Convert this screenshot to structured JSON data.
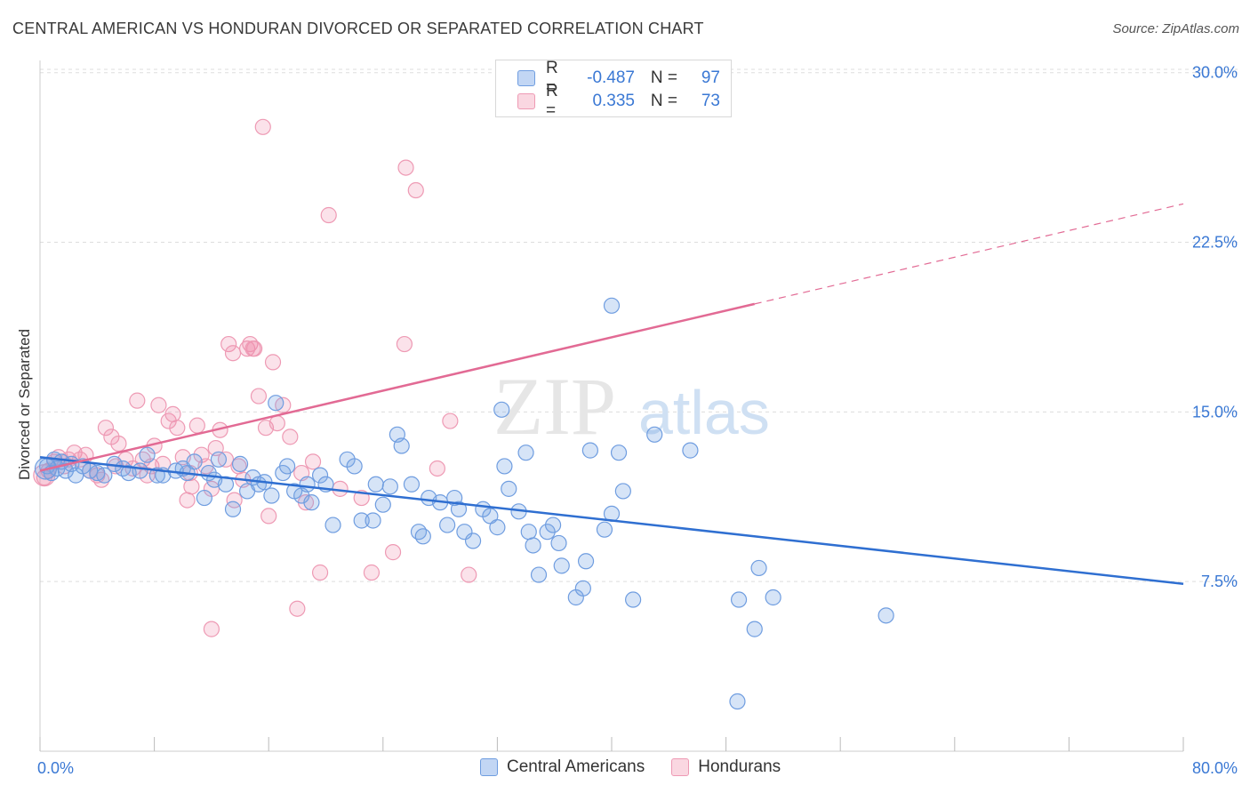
{
  "title": "CENTRAL AMERICAN VS HONDURAN DIVORCED OR SEPARATED CORRELATION CHART",
  "source": "Source: ZipAtlas.com",
  "watermark": {
    "zip": "ZIP",
    "atlas": "atlas"
  },
  "legend_top": [
    {
      "r_label": "R =",
      "r_value": "-0.487",
      "n_label": "N =",
      "n_value": "97"
    },
    {
      "r_label": "R =",
      "r_value": "0.335",
      "n_label": "N =",
      "n_value": "73"
    }
  ],
  "legend_bottom": [
    {
      "label": "Central Americans"
    },
    {
      "label": "Hondurans"
    }
  ],
  "colors": {
    "blue_fill": "rgba(120,165,230,0.30)",
    "blue_stroke": "#6f9de0",
    "blue_line": "#2f6fd1",
    "pink_fill": "rgba(240,140,170,0.25)",
    "pink_stroke": "#ee9ab4",
    "pink_line": "#e26a94",
    "tick_label": "#3a78d4",
    "grid": "#dddddd"
  },
  "chart_data": {
    "type": "scatter",
    "title": "CENTRAL AMERICAN VS HONDURAN DIVORCED OR SEPARATED CORRELATION CHART",
    "xlabel": "",
    "ylabel": "Divorced or Separated",
    "xlim": [
      0,
      80
    ],
    "ylim": [
      0,
      30.5
    ],
    "x_tick_labels": [
      "0.0%",
      "80.0%"
    ],
    "y_ticks": [
      7.5,
      15.0,
      22.5,
      30.0
    ],
    "y_tick_labels": [
      "7.5%",
      "15.0%",
      "22.5%",
      "30.0%"
    ],
    "grid": true,
    "legend_position": "top-center",
    "series": [
      {
        "name": "Central Americans",
        "color": "#6f9de0",
        "trend": {
          "x": [
            0,
            80
          ],
          "y": [
            13.0,
            7.4
          ]
        },
        "points": [
          [
            0.5,
            12.6
          ],
          [
            0.8,
            12.3
          ],
          [
            1.0,
            12.9
          ],
          [
            1.2,
            12.5
          ],
          [
            1.5,
            12.8
          ],
          [
            1.8,
            12.4
          ],
          [
            2.2,
            12.7
          ],
          [
            2.5,
            12.2
          ],
          [
            3.0,
            12.6
          ],
          [
            3.5,
            12.4
          ],
          [
            4.0,
            12.3
          ],
          [
            4.5,
            12.2
          ],
          [
            5.2,
            12.7
          ],
          [
            5.8,
            12.5
          ],
          [
            6.2,
            12.3
          ],
          [
            7.0,
            12.4
          ],
          [
            7.5,
            13.1
          ],
          [
            8.2,
            12.2
          ],
          [
            8.6,
            12.2
          ],
          [
            9.5,
            12.4
          ],
          [
            10.0,
            12.5
          ],
          [
            10.3,
            12.3
          ],
          [
            10.8,
            12.8
          ],
          [
            11.5,
            11.2
          ],
          [
            11.8,
            12.3
          ],
          [
            12.2,
            12.0
          ],
          [
            12.5,
            12.9
          ],
          [
            13.0,
            11.8
          ],
          [
            13.5,
            10.7
          ],
          [
            14.0,
            12.7
          ],
          [
            14.5,
            11.5
          ],
          [
            14.9,
            12.1
          ],
          [
            15.3,
            11.8
          ],
          [
            15.7,
            11.9
          ],
          [
            16.2,
            11.3
          ],
          [
            16.5,
            15.4
          ],
          [
            17.0,
            12.3
          ],
          [
            17.3,
            12.6
          ],
          [
            17.8,
            11.5
          ],
          [
            18.3,
            11.3
          ],
          [
            18.7,
            11.8
          ],
          [
            19.0,
            11.0
          ],
          [
            19.6,
            12.2
          ],
          [
            20.0,
            11.8
          ],
          [
            20.5,
            10.0
          ],
          [
            21.5,
            12.9
          ],
          [
            22.0,
            12.6
          ],
          [
            22.5,
            10.2
          ],
          [
            23.3,
            10.2
          ],
          [
            23.5,
            11.8
          ],
          [
            24.0,
            10.9
          ],
          [
            24.5,
            11.7
          ],
          [
            25.0,
            14.0
          ],
          [
            25.3,
            13.5
          ],
          [
            26.0,
            11.8
          ],
          [
            26.5,
            9.7
          ],
          [
            26.8,
            9.5
          ],
          [
            27.2,
            11.2
          ],
          [
            28.0,
            11.0
          ],
          [
            28.5,
            10.0
          ],
          [
            29.0,
            11.2
          ],
          [
            29.3,
            10.7
          ],
          [
            29.7,
            9.7
          ],
          [
            30.3,
            9.3
          ],
          [
            31.0,
            10.7
          ],
          [
            31.5,
            10.4
          ],
          [
            32.0,
            9.9
          ],
          [
            32.5,
            12.6
          ],
          [
            32.8,
            11.6
          ],
          [
            32.3,
            15.1
          ],
          [
            33.5,
            10.6
          ],
          [
            34.0,
            13.2
          ],
          [
            34.2,
            9.7
          ],
          [
            34.5,
            9.1
          ],
          [
            34.9,
            7.8
          ],
          [
            35.5,
            9.7
          ],
          [
            35.9,
            10.0
          ],
          [
            36.3,
            9.2
          ],
          [
            36.5,
            8.2
          ],
          [
            37.5,
            6.8
          ],
          [
            38.0,
            7.2
          ],
          [
            38.2,
            8.4
          ],
          [
            38.5,
            13.3
          ],
          [
            39.5,
            9.8
          ],
          [
            40.8,
            11.5
          ],
          [
            40.5,
            13.2
          ],
          [
            41.5,
            6.7
          ],
          [
            43.0,
            14.0
          ],
          [
            45.5,
            13.3
          ],
          [
            48.8,
            2.2
          ],
          [
            48.9,
            6.7
          ],
          [
            50.0,
            5.4
          ],
          [
            50.3,
            8.1
          ],
          [
            51.3,
            6.8
          ],
          [
            59.2,
            6.0
          ],
          [
            40.0,
            19.7
          ],
          [
            40.0,
            10.5
          ]
        ]
      },
      {
        "name": "Hondurans",
        "color": "#ee9ab4",
        "trend": {
          "x": [
            0,
            80
          ],
          "y": [
            12.4,
            24.2
          ],
          "solid_until": 50
        },
        "points": [
          [
            0.3,
            12.1
          ],
          [
            0.6,
            12.4
          ],
          [
            1.0,
            12.8
          ],
          [
            1.3,
            13.0
          ],
          [
            1.7,
            12.6
          ],
          [
            2.0,
            12.9
          ],
          [
            2.4,
            13.2
          ],
          [
            2.8,
            12.9
          ],
          [
            3.2,
            13.1
          ],
          [
            3.5,
            12.4
          ],
          [
            4.0,
            12.2
          ],
          [
            4.3,
            12.0
          ],
          [
            4.6,
            14.3
          ],
          [
            5.0,
            13.9
          ],
          [
            5.3,
            12.6
          ],
          [
            5.5,
            13.6
          ],
          [
            6.0,
            12.9
          ],
          [
            6.5,
            12.5
          ],
          [
            6.8,
            15.5
          ],
          [
            7.2,
            12.9
          ],
          [
            7.5,
            12.2
          ],
          [
            7.8,
            12.6
          ],
          [
            8.0,
            13.5
          ],
          [
            8.3,
            15.3
          ],
          [
            8.6,
            12.7
          ],
          [
            9.0,
            14.6
          ],
          [
            9.3,
            14.9
          ],
          [
            9.6,
            14.3
          ],
          [
            10.0,
            13.0
          ],
          [
            10.3,
            11.1
          ],
          [
            10.6,
            11.7
          ],
          [
            11.0,
            14.4
          ],
          [
            11.3,
            13.1
          ],
          [
            11.6,
            12.6
          ],
          [
            12.0,
            11.6
          ],
          [
            12.3,
            13.4
          ],
          [
            12.6,
            14.2
          ],
          [
            13.0,
            12.9
          ],
          [
            13.2,
            18.0
          ],
          [
            13.5,
            17.6
          ],
          [
            13.9,
            12.6
          ],
          [
            14.2,
            12.0
          ],
          [
            14.5,
            17.8
          ],
          [
            14.7,
            18.0
          ],
          [
            15.0,
            17.8
          ],
          [
            15.3,
            15.7
          ],
          [
            15.6,
            27.6
          ],
          [
            15.8,
            14.3
          ],
          [
            16.3,
            17.2
          ],
          [
            16.6,
            14.5
          ],
          [
            17.0,
            15.3
          ],
          [
            17.5,
            13.9
          ],
          [
            18.0,
            6.3
          ],
          [
            18.3,
            12.3
          ],
          [
            18.6,
            11.0
          ],
          [
            19.1,
            12.8
          ],
          [
            19.6,
            7.9
          ],
          [
            20.2,
            23.7
          ],
          [
            21.0,
            11.6
          ],
          [
            22.5,
            11.2
          ],
          [
            23.2,
            7.9
          ],
          [
            24.7,
            8.8
          ],
          [
            25.6,
            25.8
          ],
          [
            26.3,
            24.8
          ],
          [
            28.7,
            14.6
          ],
          [
            27.8,
            12.5
          ],
          [
            16.0,
            10.4
          ],
          [
            10.5,
            12.3
          ],
          [
            12.0,
            5.4
          ],
          [
            13.6,
            11.1
          ],
          [
            14.9,
            17.8
          ],
          [
            25.5,
            18.0
          ],
          [
            30.0,
            7.8
          ]
        ]
      }
    ]
  }
}
